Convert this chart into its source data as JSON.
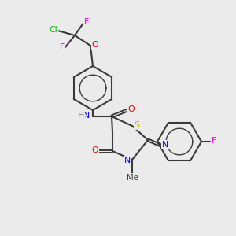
{
  "bg_color": "#ebebeb",
  "bond_color": "#3a3a3a",
  "colors": {
    "N": "#0000ee",
    "O": "#ee0000",
    "S": "#ccaa00",
    "F": "#dd00dd",
    "Cl": "#00bb00",
    "H": "#707070",
    "C": "#3a3a3a"
  }
}
